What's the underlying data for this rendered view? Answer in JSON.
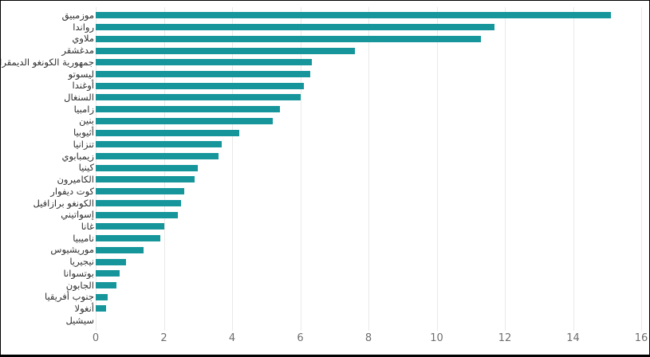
{
  "chart_data": {
    "type": "bar",
    "orientation": "horizontal",
    "title": "",
    "xlabel": "",
    "ylabel": "",
    "categories": [
      "موزمبيق",
      "رواندا",
      "ملاوي",
      "مدغشقر",
      "جمهورية الكونغو الديمقراطية",
      "ليسوتو",
      "أوغندا",
      "السنغال",
      "زامبيا",
      "بنين",
      "أثيوبيا",
      "تنزانيا",
      "زيمبابوي",
      "كينيا",
      "الكاميرون",
      "كوت ديفوار",
      "الكونغو برازافيل",
      "إسواتيني",
      "غانا",
      "ناميبيا",
      "موريشيوس",
      "نيجيريا",
      "بوتسوانا",
      "الجابون",
      "جنوب أفريقيا",
      "أنغولا",
      "سيشيل"
    ],
    "values": [
      15.1,
      11.7,
      11.3,
      7.6,
      6.35,
      6.3,
      6.1,
      6.0,
      5.4,
      5.2,
      4.2,
      3.7,
      3.6,
      3.0,
      2.9,
      2.6,
      2.5,
      2.4,
      2.0,
      1.9,
      1.4,
      0.9,
      0.7,
      0.6,
      0.35,
      0.3,
      0
    ],
    "xlim": [
      0,
      16
    ],
    "xticks": [
      "0",
      "2",
      "4",
      "6",
      "8",
      "10",
      "12",
      "14",
      "16"
    ],
    "grid": true,
    "legend": false,
    "colors": {
      "bar": "#16969b",
      "gridline": "#e9e9e9",
      "tick_label": "#6e6e6e",
      "category_label": "#303030",
      "frame_border": "#000000",
      "background": "#ffffff"
    }
  }
}
